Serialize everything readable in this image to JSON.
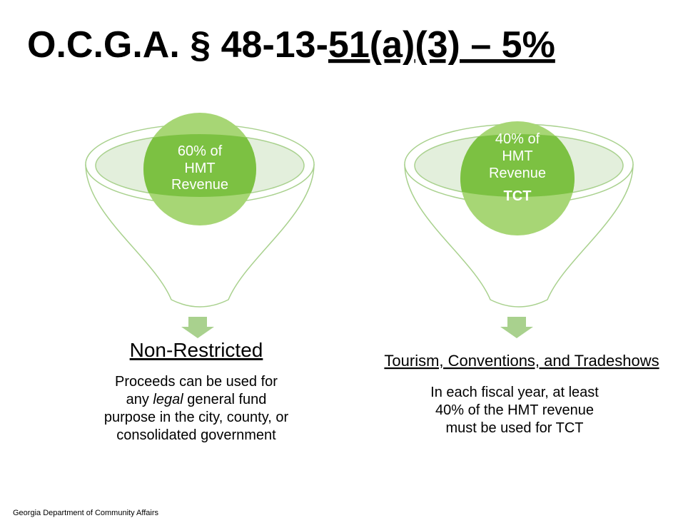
{
  "title": {
    "plain": "O.C.G.A. § 48-13-",
    "underlined": "51(a)(3) – 5%"
  },
  "funnels": [
    {
      "circle_lines": [
        "60% of",
        "HMT",
        "Revenue"
      ],
      "heading": "Non-Restricted",
      "description": {
        "line1": "Proceeds can be used for",
        "line2": {
          "before": "any ",
          "italic": "legal",
          "after": " general fund"
        },
        "line3": "purpose in the city, county, or",
        "line4": "consolidated government"
      }
    },
    {
      "circle_lines": [
        "40% of",
        "HMT",
        "Revenue"
      ],
      "circle_bold": "TCT",
      "heading": "Tourism, Conventions, and Tradeshows",
      "description": {
        "line1": "In each fiscal year, at least",
        "line2": "40% of the HMT revenue",
        "line3": "must be used for TCT"
      }
    }
  ],
  "footer": "Georgia Department of Community Affairs"
}
